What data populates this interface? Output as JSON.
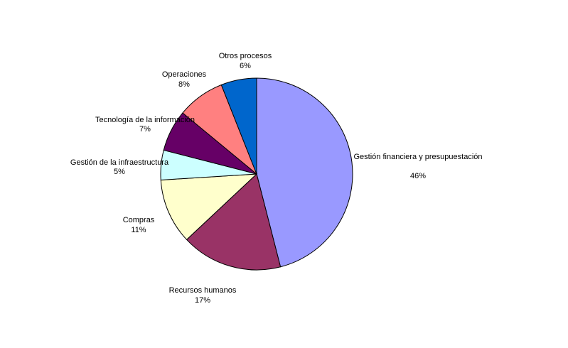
{
  "chart_data": {
    "type": "pie",
    "title": "",
    "slices": [
      {
        "label": "Gestión financiera y presupuestación",
        "value": 46,
        "pct_label": "46%",
        "color": "#9999FF"
      },
      {
        "label": "Recursos humanos",
        "value": 17,
        "pct_label": "17%",
        "color": "#993366"
      },
      {
        "label": "Compras",
        "value": 11,
        "pct_label": "11%",
        "color": "#FFFFCC"
      },
      {
        "label": "Gestión de la infraestructura",
        "value": 5,
        "pct_label": "5%",
        "color": "#CCFFFF"
      },
      {
        "label": "Tecnología de la información",
        "value": 7,
        "pct_label": "7%",
        "color": "#660066"
      },
      {
        "label": "Operaciones",
        "value": 8,
        "pct_label": "8%",
        "color": "#FF8080"
      },
      {
        "label": "Otros procesos",
        "value": 6,
        "pct_label": "6%",
        "color": "#0066CC"
      }
    ],
    "start": "12 o'clock",
    "direction": "clockwise",
    "legend": "none"
  }
}
